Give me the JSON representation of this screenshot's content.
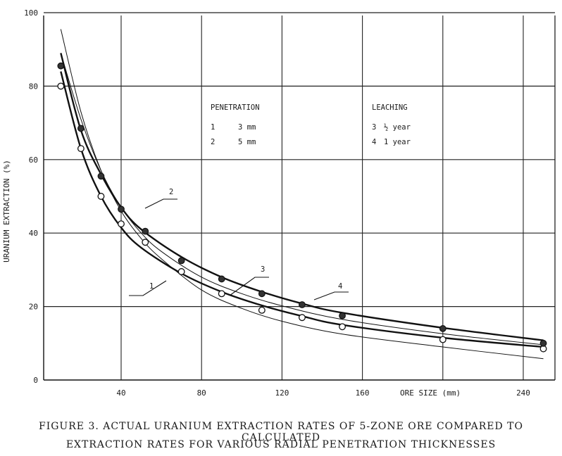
{
  "chart_data": {
    "type": "line",
    "title": "",
    "xlabel": "ORE SIZE  (mm)",
    "ylabel": "URANIUM EXTRACTION  (%)",
    "xlim": [
      0,
      260
    ],
    "ylim": [
      0,
      100
    ],
    "x_ticks": [
      40,
      80,
      120,
      160,
      240
    ],
    "y_ticks": [
      0,
      20,
      40,
      60,
      80,
      100
    ],
    "grid": true,
    "legend": {
      "penetration_title": "PENETRATION",
      "penetration_items": [
        {
          "id": "1",
          "value": "3 mm"
        },
        {
          "id": "2",
          "value": "5 mm"
        }
      ],
      "leaching_title": "LEACHING",
      "leaching_items": [
        {
          "id": "3",
          "value": "½ year"
        },
        {
          "id": "4",
          "value": "1 year"
        }
      ]
    },
    "series": [
      {
        "name": "1",
        "style": "thin",
        "x": [
          10,
          20,
          30,
          40,
          50,
          60,
          80,
          100,
          120,
          150,
          200,
          250
        ],
        "y": [
          95.5,
          73,
          57,
          46,
          38.5,
          33,
          24.5,
          19.5,
          16,
          12.5,
          9,
          5.8
        ]
      },
      {
        "name": "2",
        "style": "thin",
        "x": [
          10,
          20,
          30,
          40,
          50,
          60,
          80,
          100,
          120,
          150,
          200,
          250
        ],
        "y": [
          89,
          71,
          57,
          47,
          40,
          35,
          28,
          23.5,
          20.2,
          16.5,
          12.6,
          9.6
        ]
      },
      {
        "name": "3",
        "style": "thick",
        "x": [
          10,
          20,
          30,
          40,
          50,
          70,
          90,
          110,
          130,
          150,
          200,
          250
        ],
        "y": [
          84,
          63,
          50,
          41.5,
          36,
          29,
          24,
          20.3,
          17.4,
          15,
          11.5,
          9
        ]
      },
      {
        "name": "4",
        "style": "thick",
        "x": [
          10,
          20,
          30,
          40,
          50,
          70,
          90,
          110,
          130,
          150,
          200,
          250
        ],
        "y": [
          89,
          68,
          56,
          47,
          41,
          33.5,
          28,
          24,
          20.8,
          18.3,
          14.2,
          10.8
        ]
      }
    ],
    "points_half_year": {
      "x": [
        10,
        20,
        30,
        40,
        52,
        70,
        90,
        110,
        130,
        150,
        200,
        250
      ],
      "y": [
        80,
        63,
        50,
        42.5,
        37.5,
        29.5,
        23.5,
        19,
        17,
        14.5,
        11,
        8.5
      ]
    },
    "points_one_year": {
      "x": [
        10,
        20,
        30,
        40,
        52,
        70,
        90,
        110,
        130,
        150,
        200,
        250
      ],
      "y": [
        85.5,
        68.5,
        55.5,
        46.5,
        40.5,
        32.5,
        27.5,
        23.5,
        20.5,
        17.5,
        14,
        10
      ]
    },
    "curve_labels": [
      "1",
      "2",
      "3",
      "4"
    ]
  },
  "caption": {
    "line1": "FIGURE 3.  ACTUAL URANIUM EXTRACTION RATES OF 5-ZONE ORE COMPARED TO CALCULATED",
    "line2": "EXTRACTION RATES FOR VARIOUS RADIAL PENETRATION THICKNESSES"
  }
}
